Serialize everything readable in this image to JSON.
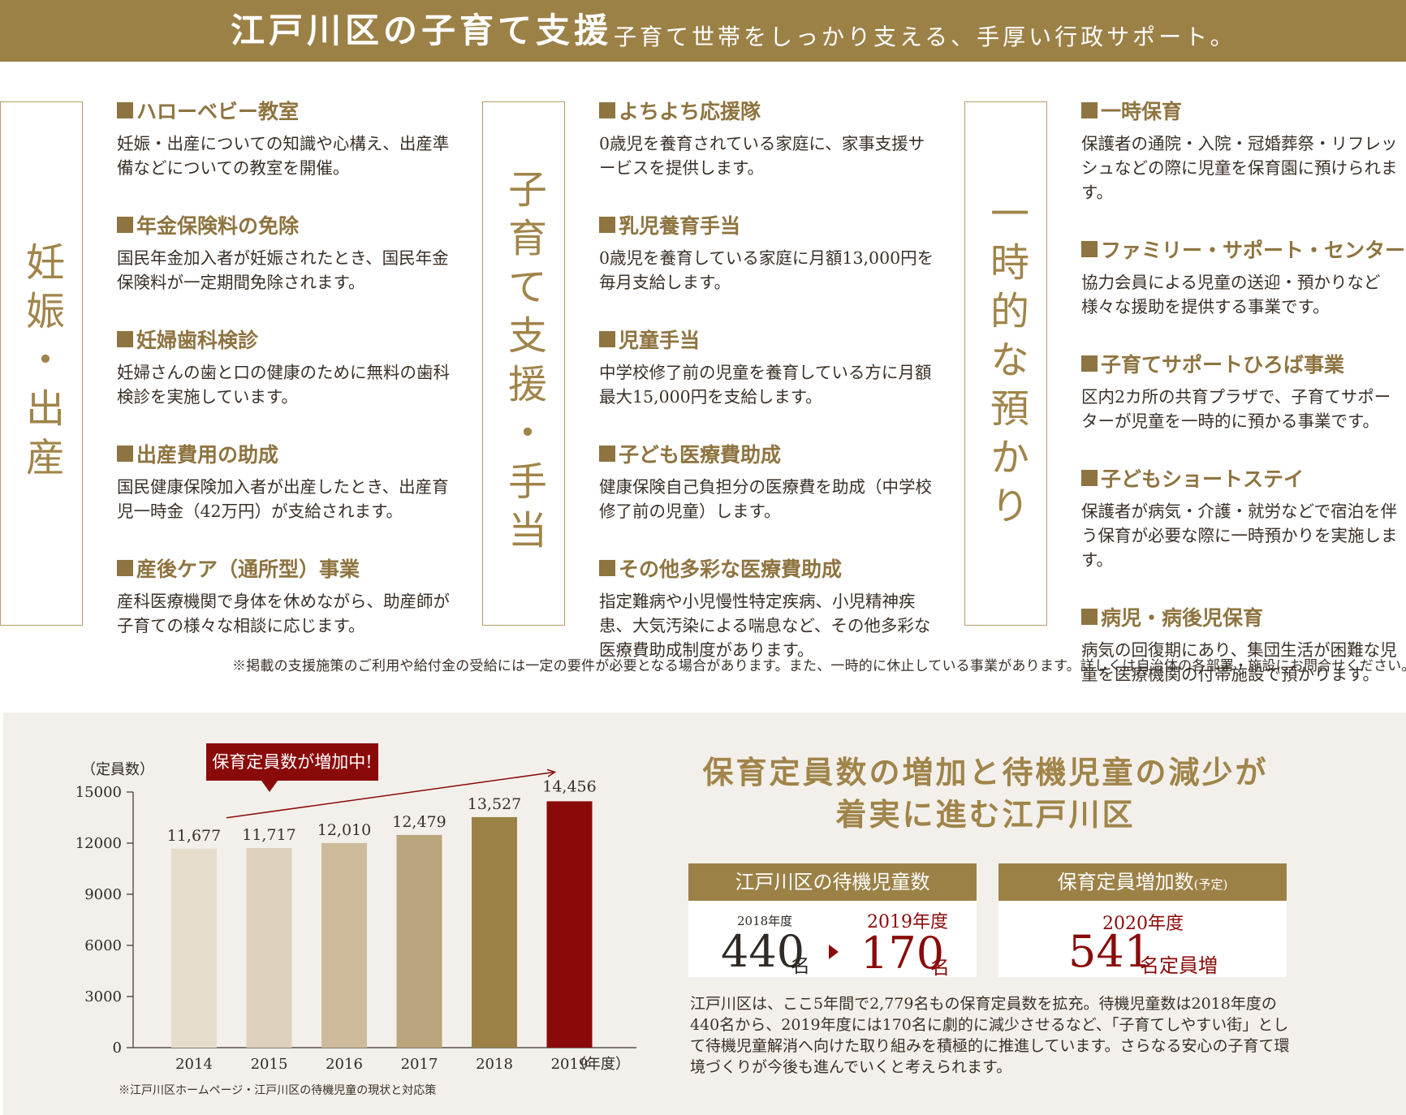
{
  "header": {
    "title": "江戸川区の子育て支援",
    "subtitle": "子育て世帯をしっかり支える、手厚い行政サポート。"
  },
  "categories": [
    {
      "title": "妊娠・出産",
      "items": [
        {
          "title": "ハローベビー教室",
          "desc": "妊娠・出産についての知識や心構え、出産準備などについての教室を開催。"
        },
        {
          "title": "年金保険料の免除",
          "desc": "国民年金加入者が妊娠されたとき、国民年金保険料が一定期間免除されます。"
        },
        {
          "title": "妊婦歯科検診",
          "desc": "妊婦さんの歯と口の健康のために無料の歯科検診を実施しています。"
        },
        {
          "title": "出産費用の助成",
          "desc": "国民健康保険加入者が出産したとき、出産育児一時金（42万円）が支給されます。"
        },
        {
          "title": "産後ケア（通所型）事業",
          "desc": "産科医療機関で身体を休めながら、助産師が子育ての様々な相談に応じます。"
        }
      ]
    },
    {
      "title": "子育て支援・手当",
      "items": [
        {
          "title": "よちよち応援隊",
          "desc": "0歳児を養育されている家庭に、家事支援サービスを提供します。"
        },
        {
          "title": "乳児養育手当",
          "desc": "0歳児を養育している家庭に月額13,000円を毎月支給します。"
        },
        {
          "title": "児童手当",
          "desc": "中学校修了前の児童を養育している方に月額最大15,000円を支給します。"
        },
        {
          "title": "子ども医療費助成",
          "desc": "健康保険自己負担分の医療費を助成（中学校修了前の児童）します。"
        },
        {
          "title": "その他多彩な医療費助成",
          "desc": "指定難病や小児慢性特定疾病、小児精神疾患、大気汚染による喘息など、その他多彩な医療費助成制度があります。"
        }
      ]
    },
    {
      "title": "一時的な預かり",
      "items": [
        {
          "title": "一時保育",
          "desc": "保護者の通院・入院・冠婚葬祭・リフレッシュなどの際に児童を保育園に預けられます。"
        },
        {
          "title": "ファミリー・サポート・センター",
          "desc": "協力会員による児童の送迎・預かりなど様々な援助を提供する事業です。"
        },
        {
          "title": "子育てサポートひろば事業",
          "desc": "区内2カ所の共育プラザで、子育てサポーターが児童を一時的に預かる事業です。"
        },
        {
          "title": "子どもショートステイ",
          "desc": "保護者が病気・介護・就労などで宿泊を伴う保育が必要な際に一時預かりを実施します。"
        },
        {
          "title": "病児・病後児保育",
          "desc": "病気の回復期にあり、集団生活が困難な児童を医療機関の付帯施設で預かります。"
        }
      ]
    }
  ],
  "note": "※掲載の支援施策のご利用や給付金の受給には一定の要件が必要となる場合があります。また、一時的に休止している事業があります。詳しくは自治体の各部署・施設にお問合せください。",
  "chart_data": {
    "type": "bar",
    "title": "",
    "callout": "保育定員数が増加中!",
    "ylabel": "（定員数）",
    "xlabel": "（年度）",
    "ylim": [
      0,
      15000
    ],
    "yticks": [
      0,
      3000,
      6000,
      9000,
      12000,
      15000
    ],
    "categories": [
      "2014",
      "2015",
      "2016",
      "2017",
      "2018",
      "2019"
    ],
    "values": [
      11677,
      11717,
      12010,
      12479,
      13527,
      14456
    ],
    "value_labels": [
      "11,677",
      "11,717",
      "12,010",
      "12,479",
      "13,527",
      "14,456"
    ],
    "bar_colors": [
      "#e6ddcd",
      "#ddd1bd",
      "#cdbb9b",
      "#bba57c",
      "#9c8147",
      "#8a0a0a"
    ],
    "highlight_color": "#8a0a0a",
    "source": "※江戸川区ホームページ・江戸川区の待機児童の現状と対応策"
  },
  "right": {
    "title_line1": "保育定員数の増加と待機児童の減少が",
    "title_line2": "着実に進む江戸川区",
    "waiting": {
      "header": "江戸川区の待機児童数",
      "from_year": "2018年度",
      "from_value": "440",
      "to_year": "2019年度",
      "to_value": "170",
      "unit": "名"
    },
    "capacity": {
      "header": "保育定員増加数",
      "header_note": "(予定)",
      "year": "2020年度",
      "value": "541",
      "unit": "名定員増"
    },
    "description": "江戸川区は、ここ5年間で2,779名もの保育定員数を拡充。待機児童数は2018年度の440名から、2019年度には170名に劇的に減少させるなど、「子育てしやすい街」として待機児童解消へ向けた取り組みを積極的に推進しています。さらなる安心の子育て環境づくりが今後も進んでいくと考えられます。"
  },
  "colors": {
    "gold": "#9c8147",
    "gold_text": "#a08449",
    "dark_red": "#8a0a0a",
    "panel_bg": "#f3f0eb"
  }
}
